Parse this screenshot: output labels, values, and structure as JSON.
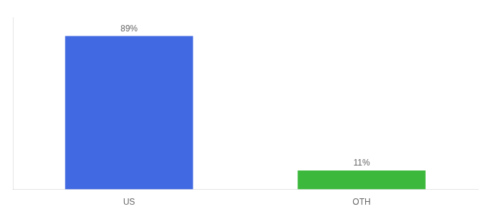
{
  "chart_data": {
    "type": "bar",
    "categories": [
      "US",
      "OTH"
    ],
    "values": [
      89,
      11
    ],
    "value_labels": [
      "89%",
      "11%"
    ],
    "colors": [
      "#4169e1",
      "#3cb83c"
    ],
    "ylim": [
      0,
      100
    ],
    "grid": false,
    "data_labels": true,
    "tick_labels": "x"
  }
}
